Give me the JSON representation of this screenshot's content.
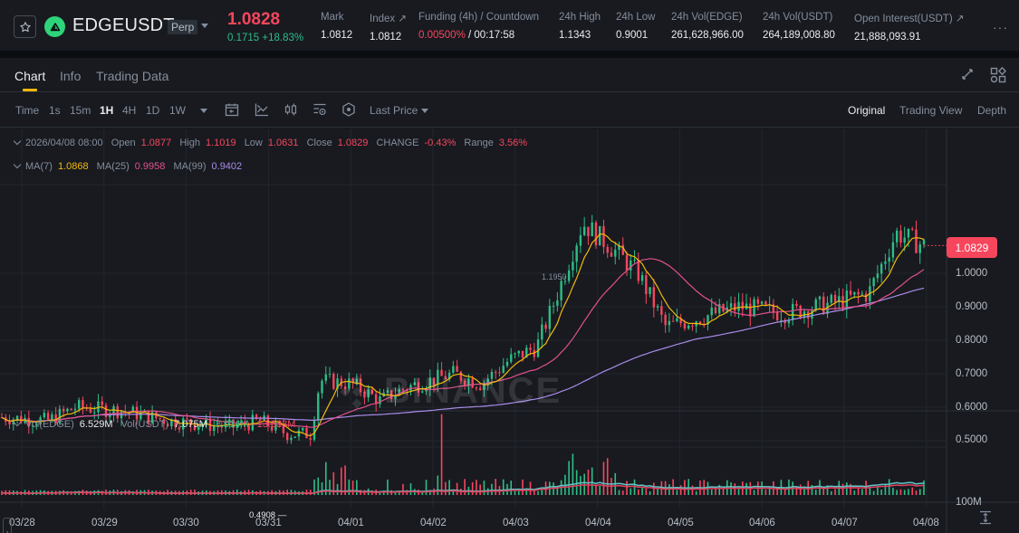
{
  "header": {
    "symbol": "EDGEUSDT",
    "contract_type": "Perp",
    "last_price": "1.0828",
    "change": "0.1715 +18.83%",
    "stats": [
      {
        "label": "Mark",
        "value": "1.0812"
      },
      {
        "label": "Index ↗",
        "value": "1.0812"
      },
      {
        "label": "Funding (4h) / Countdown",
        "value_red": "0.00500%",
        "value": " / 00:17:58"
      },
      {
        "label": "24h High",
        "value": "1.1343"
      },
      {
        "label": "24h Low",
        "value": "0.9001"
      },
      {
        "label": "24h Vol(EDGE)",
        "value": "261,628,966.00"
      },
      {
        "label": "24h Vol(USDT)",
        "value": "264,189,008.80"
      },
      {
        "label": "Open Interest(USDT) ↗",
        "value": "21,888,093.91"
      }
    ],
    "more_label": "···"
  },
  "tabs": [
    {
      "label": "Chart",
      "active": true
    },
    {
      "label": "Info",
      "active": false
    },
    {
      "label": "Trading Data",
      "active": false
    }
  ],
  "toolbar": {
    "intervals": [
      "Time",
      "1s",
      "15m",
      "1H",
      "4H",
      "1D",
      "1W"
    ],
    "active_interval": "1H",
    "price_type": "Last Price",
    "views": [
      "Original",
      "Trading View",
      "Depth"
    ],
    "active_view": "Original",
    "icons": [
      "calendar-icon",
      "indicator-icon",
      "candle-type-icon",
      "settings-list-icon",
      "hexagon-settings-icon"
    ]
  },
  "legend": {
    "ohlc": {
      "datetime": "2026/04/08 08:00",
      "open_label": "Open",
      "open": "1.0877",
      "high_label": "High",
      "high": "1.1019",
      "low_label": "Low",
      "low": "1.0631",
      "close_label": "Close",
      "close": "1.0829",
      "change_label": "CHANGE",
      "change": "-0.43%",
      "range_label": "Range",
      "range": "3.56%"
    },
    "ma": {
      "ma7_label": "MA(7)",
      "ma7": "1.0868",
      "ma25_label": "MA(25)",
      "ma25": "0.9958",
      "ma99_label": "MA(99)",
      "ma99": "0.9402"
    },
    "volume": {
      "vol_edge_label": "Vol(EDGE)",
      "vol_edge": "6.529M",
      "vol_usdt_label": "Vol(USDT)",
      "vol_usdt": "7.075M",
      "vol_ma1": "8.014M",
      "vol_ma2": "13.633M"
    }
  },
  "price_tag": "1.0829",
  "high_marker": "1.1950",
  "low_marker": "0.4908",
  "watermark": "BINANCE",
  "colors": {
    "up": "#2ebd85",
    "down": "#f6465d",
    "ma7": "#f0b90b",
    "ma25": "#e2508c",
    "ma99": "#a98be8",
    "vol_ma1": "#5fc7c7",
    "vol_ma2": "#e2405e",
    "accent": "#f0b90b"
  },
  "chart_data": {
    "type": "candlestick",
    "title": "EDGEUSDT Perp 1H",
    "interval": "1H",
    "y_axis": {
      "ticks": [
        "1.0000",
        "0.9000",
        "0.8000",
        "0.7000",
        "0.6000",
        "0.5000"
      ],
      "range": [
        0.46,
        1.22
      ]
    },
    "volume_axis": {
      "ticks": [
        "100M"
      ]
    },
    "x_axis": {
      "ticks": [
        "03/28",
        "03/29",
        "03/30",
        "03/31",
        "04/01",
        "04/02",
        "04/03",
        "04/04",
        "04/05",
        "04/06",
        "04/07",
        "04/08"
      ]
    },
    "series_hint": [
      {
        "t": 0,
        "p": 0.57
      },
      {
        "t": 0.05,
        "p": 0.56
      },
      {
        "t": 0.08,
        "p": 0.6
      },
      {
        "t": 0.13,
        "p": 0.59
      },
      {
        "t": 0.18,
        "p": 0.56
      },
      {
        "t": 0.25,
        "p": 0.54
      },
      {
        "t": 0.28,
        "p": 0.56
      },
      {
        "t": 0.31,
        "p": 0.52
      },
      {
        "t": 0.335,
        "p": 0.52
      },
      {
        "t": 0.345,
        "p": 0.68
      },
      {
        "t": 0.38,
        "p": 0.67
      },
      {
        "t": 0.41,
        "p": 0.62
      },
      {
        "t": 0.44,
        "p": 0.66
      },
      {
        "t": 0.49,
        "p": 0.7
      },
      {
        "t": 0.52,
        "p": 0.67
      },
      {
        "t": 0.55,
        "p": 0.74
      },
      {
        "t": 0.58,
        "p": 0.78
      },
      {
        "t": 0.6,
        "p": 0.92
      },
      {
        "t": 0.63,
        "p": 1.15
      },
      {
        "t": 0.66,
        "p": 1.08
      },
      {
        "t": 0.69,
        "p": 1.0
      },
      {
        "t": 0.72,
        "p": 0.84
      },
      {
        "t": 0.76,
        "p": 0.87
      },
      {
        "t": 0.8,
        "p": 0.9
      },
      {
        "t": 0.85,
        "p": 0.88
      },
      {
        "t": 0.9,
        "p": 0.91
      },
      {
        "t": 0.94,
        "p": 0.94
      },
      {
        "t": 0.97,
        "p": 1.12
      },
      {
        "t": 1.0,
        "p": 1.083
      }
    ],
    "ma7_last": 1.0868,
    "ma25_last": 0.9958,
    "ma99_last": 0.9402,
    "high": 1.195,
    "low": 0.4908,
    "last_close": 1.0829
  }
}
